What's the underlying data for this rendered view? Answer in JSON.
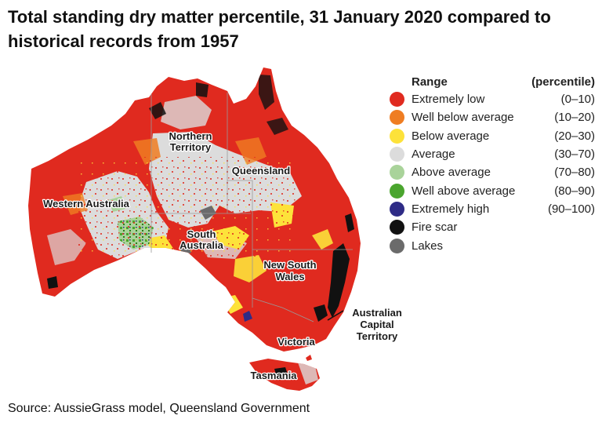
{
  "title": "Total standing dry matter percentile, 31 January 2020 compared to historical records from 1957",
  "legend": {
    "heading": "Range",
    "heading_unit": "(percentile)",
    "items": [
      {
        "label": "Extremely low",
        "range": "(0–10)",
        "color": "#e02a1f"
      },
      {
        "label": "Well below average",
        "range": "(10–20)",
        "color": "#ef7d22"
      },
      {
        "label": "Below average",
        "range": "(20–30)",
        "color": "#fde23a"
      },
      {
        "label": "Average",
        "range": "(30–70)",
        "color": "#dcdcdc"
      },
      {
        "label": "Above average",
        "range": "(70–80)",
        "color": "#a9d39a"
      },
      {
        "label": "Well above average",
        "range": "(80–90)",
        "color": "#4aa52e"
      },
      {
        "label": "Extremely high",
        "range": "(90–100)",
        "color": "#2e2b86"
      },
      {
        "label": "Fire scar",
        "range": "",
        "color": "#111111"
      },
      {
        "label": "Lakes",
        "range": "",
        "color": "#6b6b6b"
      }
    ]
  },
  "regions": {
    "nt_line1": "Northern",
    "nt_line2": "Territory",
    "qld": "Queensland",
    "wa": "Western Australia",
    "sa_line1": "South",
    "sa_line2": "Australia",
    "nsw_line1": "New South",
    "nsw_line2": "Wales",
    "act_line1": "Australian",
    "act_line2": "Capital",
    "act_line3": "Territory",
    "vic": "Victoria",
    "tas": "Tasmania"
  },
  "source": "Source: AussieGrass model, Queensland Government"
}
